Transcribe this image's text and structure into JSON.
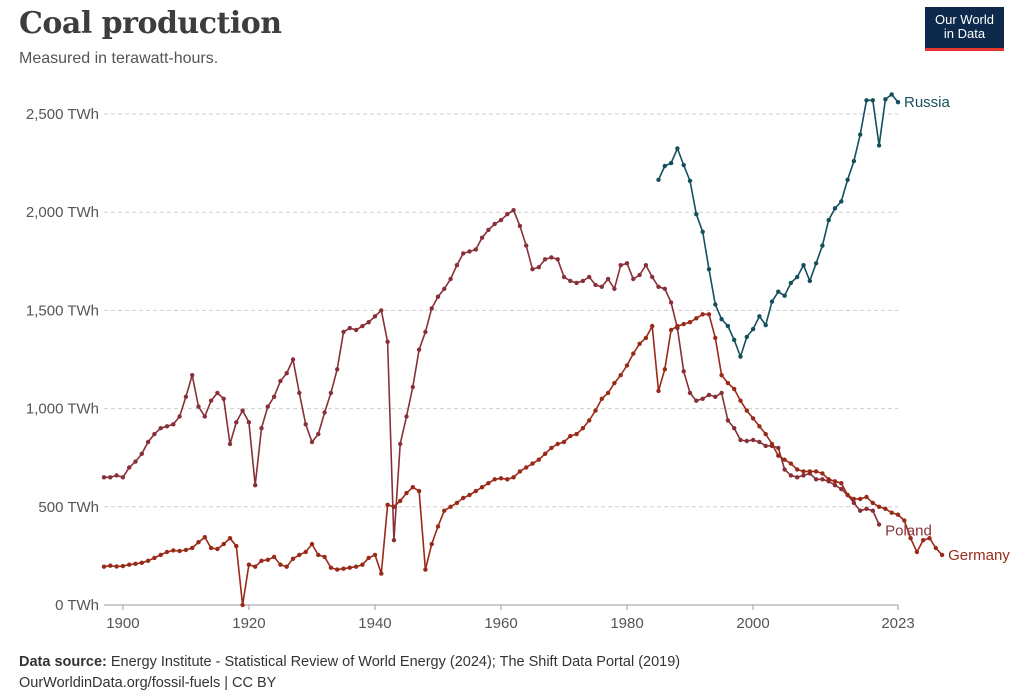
{
  "header": {
    "title": "Coal production",
    "subtitle": "Measured in terawatt-hours."
  },
  "logo": {
    "line1": "Our World",
    "line2": "in Data"
  },
  "footer": {
    "source_label": "Data source:",
    "source_text": " Energy Institute - Statistical Review of World Energy (2024); The Shift Data Portal (2019)",
    "url_line": "OurWorldinData.org/fossil-fuels | CC BY"
  },
  "colors": {
    "russia": "#14505c",
    "poland": "#883039",
    "germany": "#9a2a18"
  },
  "chart_data": {
    "type": "line",
    "ylim": [
      0,
      2500
    ],
    "xlim": [
      1897,
      2023
    ],
    "y_ticks": [
      0,
      500,
      1000,
      1500,
      2000,
      2500
    ],
    "y_tick_labels": [
      "0 TWh",
      "500 TWh",
      "1,000 TWh",
      "1,500 TWh",
      "2,000 TWh",
      "2,500 TWh"
    ],
    "x_ticks": [
      1900,
      1920,
      1940,
      1960,
      1980,
      2000,
      2023
    ],
    "x_tick_labels": [
      "1900",
      "1920",
      "1940",
      "1960",
      "1980",
      "2000",
      "2023"
    ],
    "grid": "horizontal dashed",
    "series": [
      {
        "name": "Russia",
        "start_year": 1985,
        "values": [
          2165,
          2235,
          2250,
          2325,
          2240,
          2160,
          1990,
          1900,
          1710,
          1530,
          1455,
          1420,
          1350,
          1265,
          1365,
          1405,
          1470,
          1425,
          1545,
          1595,
          1575,
          1640,
          1670,
          1730,
          1650,
          1740,
          1830,
          1960,
          2020,
          2055,
          2165,
          2260,
          2395,
          2570,
          2570,
          2340,
          2575,
          2600,
          2560
        ]
      },
      {
        "name": "Poland",
        "start_year": 1897,
        "values": [
          650,
          650,
          660,
          650,
          700,
          730,
          770,
          830,
          870,
          900,
          910,
          920,
          960,
          1060,
          1170,
          1010,
          960,
          1040,
          1080,
          1050,
          820,
          930,
          990,
          930,
          610,
          900,
          1010,
          1060,
          1140,
          1180,
          1250,
          1080,
          920,
          830,
          870,
          980,
          1080,
          1200,
          1390,
          1410,
          1400,
          1420,
          1440,
          1470,
          1500,
          1340,
          330,
          820,
          960,
          1110,
          1300,
          1390,
          1510,
          1570,
          1610,
          1660,
          1730,
          1790,
          1800,
          1810,
          1870,
          1910,
          1940,
          1960,
          1990,
          2010,
          1930,
          1830,
          1710,
          1720,
          1760,
          1770,
          1760,
          1670,
          1650,
          1640,
          1650,
          1670,
          1630,
          1620,
          1660,
          1610,
          1730,
          1740,
          1660,
          1680,
          1730,
          1670,
          1620,
          1610,
          1540,
          1410,
          1190,
          1080,
          1040,
          1050,
          1070,
          1060,
          1080,
          940,
          900,
          840,
          835,
          840,
          830,
          810,
          810,
          800,
          690,
          660,
          650,
          660,
          670,
          640,
          640,
          630,
          610,
          590,
          560,
          520,
          480,
          490,
          480,
          410
        ]
      },
      {
        "name": "Germany",
        "start_year": 1897,
        "values": [
          195,
          200,
          196,
          198,
          205,
          210,
          215,
          225,
          240,
          255,
          270,
          278,
          275,
          280,
          290,
          320,
          345,
          290,
          285,
          310,
          340,
          300,
          0,
          205,
          195,
          225,
          230,
          245,
          205,
          195,
          235,
          255,
          270,
          310,
          255,
          245,
          190,
          180,
          185,
          190,
          195,
          205,
          240,
          255,
          160,
          510,
          500,
          530,
          570,
          600,
          580,
          180,
          310,
          400,
          480,
          500,
          520,
          545,
          560,
          580,
          600,
          620,
          640,
          645,
          640,
          650,
          680,
          700,
          720,
          740,
          770,
          800,
          820,
          830,
          860,
          870,
          900,
          940,
          990,
          1050,
          1080,
          1130,
          1170,
          1220,
          1280,
          1330,
          1360,
          1420,
          1090,
          1200,
          1400,
          1420,
          1430,
          1440,
          1460,
          1480,
          1480,
          1360,
          1170,
          1130,
          1100,
          1040,
          990,
          950,
          910,
          870,
          820,
          760,
          740,
          720,
          690,
          680,
          680,
          680,
          670,
          640,
          630,
          620,
          560,
          540,
          540,
          550,
          520,
          500,
          490,
          470,
          460,
          430,
          340,
          270,
          330,
          340,
          290,
          255
        ]
      }
    ]
  }
}
